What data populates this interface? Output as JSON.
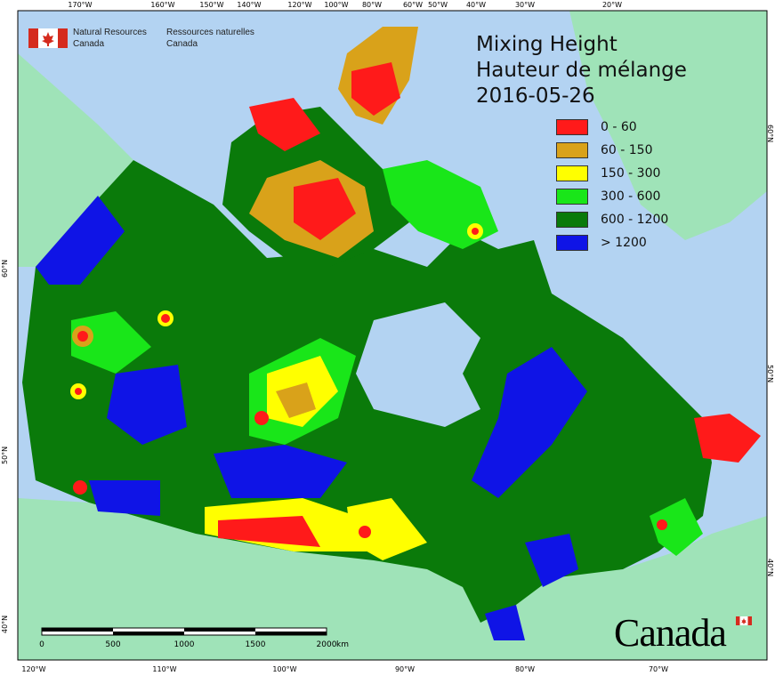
{
  "agency": {
    "en_line1": "Natural Resources",
    "en_line2": "Canada",
    "fr_line1": "Ressources naturelles",
    "fr_line2": "Canada"
  },
  "title": {
    "line1": "Mixing Height",
    "line2": "Hauteur de mélange",
    "date": "2016-05-26"
  },
  "legend": [
    {
      "label": "0 - 60",
      "color": "#ff1a1a"
    },
    {
      "label": "60 - 150",
      "color": "#d9a21a"
    },
    {
      "label": "150 - 300",
      "color": "#ffff00"
    },
    {
      "label": "300 - 600",
      "color": "#19e619"
    },
    {
      "label": "600 - 1200",
      "color": "#0a7a0a"
    },
    {
      "label": "> 1200",
      "color": "#0f14e6"
    }
  ],
  "top_ticks": [
    "170°W",
    "160°W",
    "150°W",
    "140°W",
    "120°W",
    "100°W",
    "80°W",
    "60°W",
    "50°W",
    "40°W",
    "30°W",
    "20°W"
  ],
  "bottom_ticks": [
    "120°W",
    "110°W",
    "100°W",
    "90°W",
    "80°W",
    "70°W"
  ],
  "left_ticks": [
    "60°N",
    "50°N",
    "40°N"
  ],
  "right_ticks": [
    "60°N",
    "50°N",
    "40°N"
  ],
  "scalebar": {
    "labels": [
      "0",
      "500",
      "1000",
      "1500",
      "2000"
    ],
    "unit": "km"
  },
  "wordmark": "Canada",
  "colors": {
    "ocean": "#b3d3f2",
    "land_other": "#9fe3b8"
  }
}
